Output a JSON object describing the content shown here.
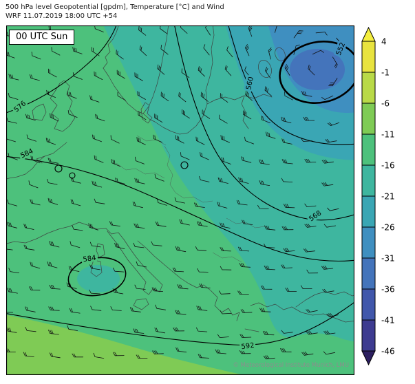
{
  "header": {
    "title_line1": "500 hPa level Geopotential [gpdm], Temperature [°C] and Wind",
    "title_line2": "WRF 11.07.2019 18:00 UTC +54"
  },
  "map": {
    "time_label": "00 UTC Sun",
    "watermark": "© Meteorological Institute Munich, LMU",
    "contour_labels": {
      "c576": "576",
      "c584_left": "584",
      "c584_small": "584",
      "c592": "592",
      "c560": "560",
      "c568": "568",
      "c552": "552"
    }
  },
  "chart_data": {
    "type": "heatmap",
    "title": "500 hPa level Geopotential [gpdm], Temperature [°C] and Wind",
    "subtitle": "WRF 11.07.2019 18:00 UTC +54",
    "valid_label": "00 UTC Sun",
    "region": "Europe",
    "fields": [
      "geopotential [gpdm]",
      "temperature [°C]",
      "wind barbs"
    ],
    "geopotential_contours_gpdm": [
      552,
      560,
      568,
      576,
      584,
      592
    ],
    "contour_labels_visible": [
      "576",
      "584",
      "560",
      "552",
      "568",
      "584",
      "592"
    ],
    "closed_low": {
      "value_gpdm": 552,
      "location": "upper-right (northeast of map)",
      "bold_contour": true
    },
    "colorbar": {
      "quantity": "Temperature [°C]",
      "position": "right",
      "ticks": [
        4,
        -1,
        -6,
        -11,
        -16,
        -21,
        -26,
        -31,
        -36,
        -41,
        -46
      ],
      "segment_colors_top_to_bottom": [
        "#e8e33f",
        "#b9da48",
        "#7fcb55",
        "#4dc17c",
        "#3eb69f",
        "#3aa6b4",
        "#3f8fc0",
        "#4474bb",
        "#4157ab",
        "#3d3b90"
      ],
      "over_color": "#f4ee3e",
      "under_color": "#2c1f60"
    },
    "temperature_fill_summary": {
      "dominant_range_c": "-11 to -16 (green) over western/central Europe",
      "cool_band_c": "-16 to -26 (teal/cyan) over Scandinavia, Baltic and Balkans",
      "coldest_area_c": "-26 to -36 (blue) inside the 552 gpdm low, upper-right",
      "warmest_band_c": "-6 to -11 (light green) along the southern edge"
    },
    "wind_symbol": "barbs",
    "contour_line_color": "#000000"
  }
}
